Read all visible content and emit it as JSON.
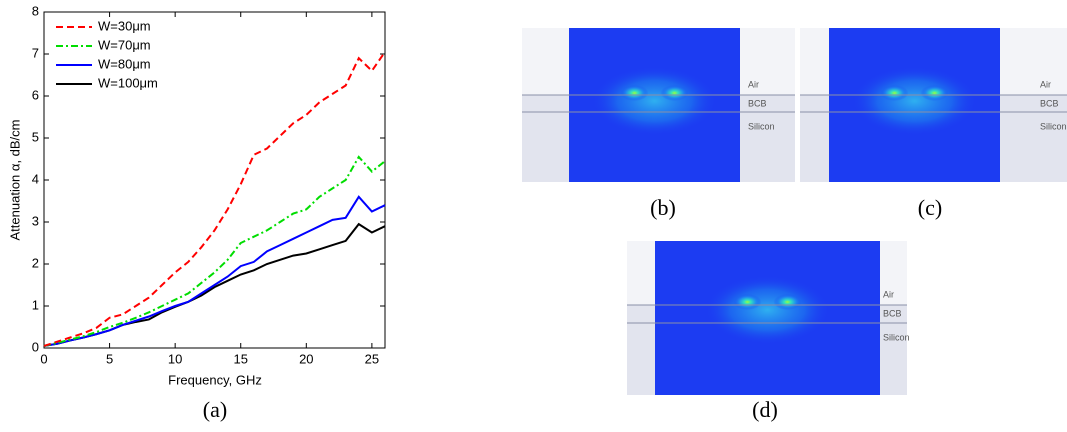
{
  "chart_data": {
    "type": "line",
    "xlabel": "Frequency, GHz",
    "ylabel": "Attenuation α, dB/cm",
    "caption": "(a)",
    "x": [
      0,
      1,
      2,
      3,
      4,
      5,
      6,
      7,
      8,
      9,
      10,
      11,
      12,
      13,
      14,
      15,
      16,
      17,
      18,
      19,
      20,
      21,
      22,
      23,
      24,
      25,
      26
    ],
    "series": [
      {
        "name": "W=30μm",
        "color": "#ff0000",
        "style": "dashed",
        "values": [
          0.05,
          0.15,
          0.25,
          0.35,
          0.48,
          0.72,
          0.8,
          1.0,
          1.2,
          1.5,
          1.8,
          2.05,
          2.4,
          2.8,
          3.3,
          3.9,
          4.6,
          4.75,
          5.05,
          5.35,
          5.55,
          5.85,
          6.05,
          6.25,
          6.9,
          6.6,
          7.05
        ]
      },
      {
        "name": "W=70μm",
        "color": "#00dd00",
        "style": "dashdot",
        "values": [
          0.05,
          0.12,
          0.2,
          0.28,
          0.38,
          0.5,
          0.6,
          0.72,
          0.85,
          1.0,
          1.15,
          1.3,
          1.55,
          1.8,
          2.1,
          2.5,
          2.65,
          2.8,
          3.0,
          3.2,
          3.3,
          3.6,
          3.8,
          4.0,
          4.55,
          4.2,
          4.45
        ]
      },
      {
        "name": "W=80μm",
        "color": "#0000ff",
        "style": "solid",
        "values": [
          0.05,
          0.1,
          0.18,
          0.25,
          0.33,
          0.42,
          0.55,
          0.65,
          0.75,
          0.88,
          1.0,
          1.1,
          1.3,
          1.5,
          1.7,
          1.95,
          2.05,
          2.3,
          2.45,
          2.6,
          2.75,
          2.9,
          3.05,
          3.1,
          3.6,
          3.25,
          3.4
        ]
      },
      {
        "name": "W=100μm",
        "color": "#000000",
        "style": "solid",
        "values": [
          0.05,
          0.1,
          0.18,
          0.25,
          0.33,
          0.42,
          0.55,
          0.62,
          0.68,
          0.85,
          0.98,
          1.1,
          1.25,
          1.45,
          1.6,
          1.75,
          1.85,
          2.0,
          2.1,
          2.2,
          2.25,
          2.35,
          2.45,
          2.55,
          2.95,
          2.75,
          2.9
        ]
      }
    ],
    "xlim": [
      0,
      26
    ],
    "xticks": [
      0,
      5,
      10,
      15,
      20,
      25
    ],
    "ylim": [
      0,
      8
    ],
    "yticks": [
      0,
      1,
      2,
      3,
      4,
      5,
      6,
      7,
      8
    ],
    "legend": "upper left"
  },
  "panels": [
    {
      "label": "(b)",
      "layers": [
        "Air",
        "BCB",
        "Silicon"
      ]
    },
    {
      "label": "(c)",
      "layers": [
        "Air",
        "BCB",
        "Silicon"
      ]
    },
    {
      "label": "(d)",
      "layers": [
        "Air",
        "BCB",
        "Silicon"
      ]
    }
  ]
}
